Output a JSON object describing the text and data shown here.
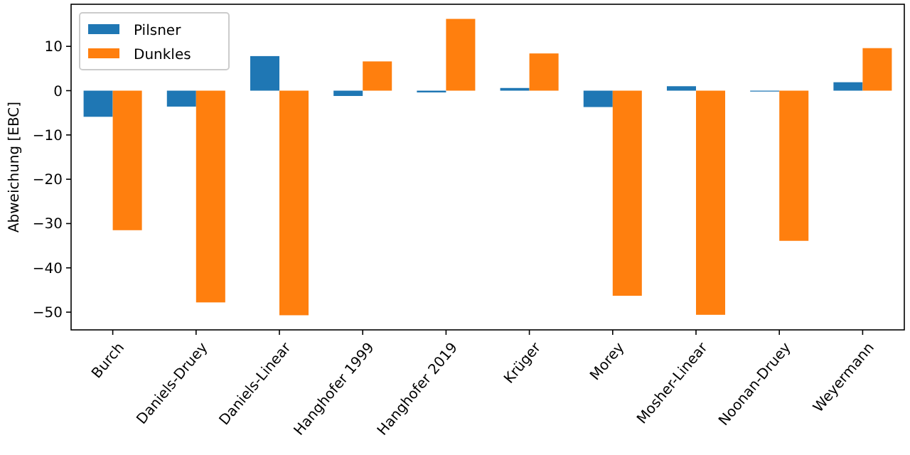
{
  "chart_data": {
    "type": "bar",
    "ylabel": "Abweichung [EBC]",
    "categories": [
      "Burch",
      "Daniels-Druey",
      "Daniels-Linear",
      "Hanghofer 1999",
      "Hanghofer 2019",
      "Krüger",
      "Morey",
      "Mosher-Linear",
      "Noonan-Druey",
      "Weyermann"
    ],
    "series": [
      {
        "name": "Pilsner",
        "color": "#1f77b4",
        "values": [
          -5.9,
          -3.6,
          7.8,
          -1.2,
          -0.4,
          0.6,
          -3.7,
          1.0,
          -0.2,
          1.9
        ]
      },
      {
        "name": "Dunkles",
        "color": "#ff7f0e",
        "values": [
          -31.5,
          -47.8,
          -50.7,
          6.6,
          16.2,
          8.4,
          -46.3,
          -50.6,
          -33.9,
          9.6
        ]
      }
    ],
    "ylim": [
      -54,
      19.5
    ],
    "yticks": [
      -50,
      -40,
      -30,
      -20,
      -10,
      0,
      10
    ],
    "legend": "top left"
  }
}
